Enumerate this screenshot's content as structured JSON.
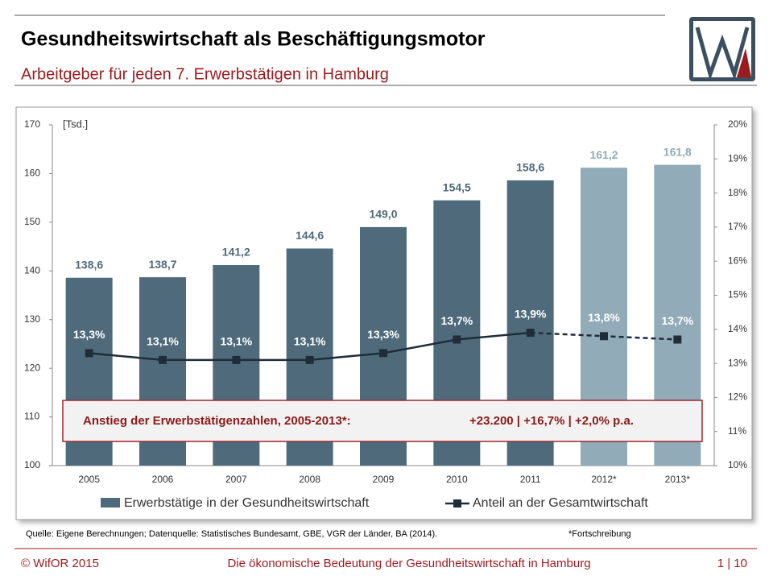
{
  "header": {
    "title": "Gesundheitswirtschaft als Beschäftigungsmotor",
    "subtitle": "Arbeitgeber für jeden 7. Erwerbstätigen in Hamburg"
  },
  "chart_data": {
    "type": "bar",
    "y_unit": "[Tsd.]",
    "categories": [
      "2005",
      "2006",
      "2007",
      "2008",
      "2009",
      "2010",
      "2011",
      "2012*",
      "2013*"
    ],
    "projected": [
      false,
      false,
      false,
      false,
      false,
      false,
      false,
      true,
      true
    ],
    "series": [
      {
        "name": "Erwerbstätige in der Gesundheitswirtschaft",
        "type": "bar",
        "color": "#4f6b7b",
        "projected_color": "#92abb8",
        "values": [
          138.6,
          138.7,
          141.2,
          144.6,
          149.0,
          154.5,
          158.6,
          161.2,
          161.8
        ],
        "value_labels": [
          "138,6",
          "138,7",
          "141,2",
          "144,6",
          "149,0",
          "154,5",
          "158,6",
          "161,2",
          "161,8"
        ]
      },
      {
        "name": "Anteil an der Gesamtwirtschaft",
        "type": "line",
        "axis": "y2",
        "color": "#1f2d3a",
        "values": [
          13.3,
          13.1,
          13.1,
          13.1,
          13.3,
          13.7,
          13.9,
          13.8,
          13.7
        ],
        "value_labels": [
          "13,3%",
          "13,1%",
          "13,1%",
          "13,1%",
          "13,3%",
          "13,7%",
          "13,9%",
          "13,8%",
          "13,7%"
        ]
      }
    ],
    "ylim": [
      100,
      170
    ],
    "yticks": [
      100,
      110,
      120,
      130,
      140,
      150,
      160,
      170
    ],
    "y2lim": [
      10,
      20
    ],
    "y2ticks": [
      {
        "value": 10,
        "label": "10%"
      },
      {
        "value": 11,
        "label": "11%"
      },
      {
        "value": 12,
        "label": "12%"
      },
      {
        "value": 13,
        "label": "13%"
      },
      {
        "value": 14,
        "label": "14%"
      },
      {
        "value": 15,
        "label": "15%"
      },
      {
        "value": 16,
        "label": "16%"
      },
      {
        "value": 17,
        "label": "17%"
      },
      {
        "value": 18,
        "label": "18%"
      },
      {
        "value": 19,
        "label": "19%"
      },
      {
        "value": 20,
        "label": "20%"
      }
    ],
    "annotation": {
      "label": "Anstieg der Erwerbstätigenzahlen, 2005-2013*:",
      "value": "+23.200 | +16,7% | +2,0% p.a."
    }
  },
  "source": "Quelle: Eigene Berechnungen;  Datenquelle: Statistisches Bundesamt, GBE, VGR der Länder, BA (2014).",
  "note": "*Fortschreibung",
  "footer": {
    "left": "© WifOR 2015",
    "center": "Die ökonomische Bedeutung der Gesundheitswirtschaft  in Hamburg",
    "right": "1 | 10"
  }
}
